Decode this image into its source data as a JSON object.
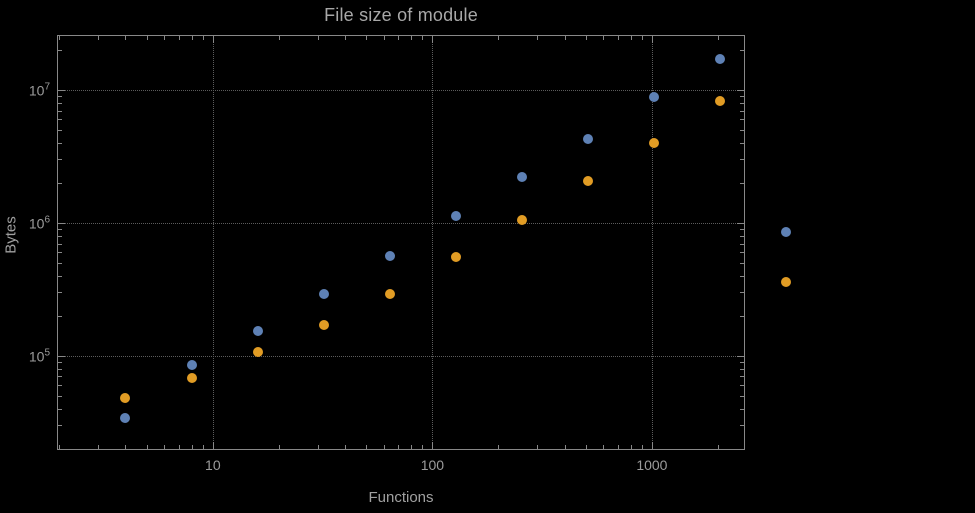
{
  "chart_data": {
    "type": "scatter",
    "title": "File size of module",
    "xlabel": "Functions",
    "ylabel": "Bytes",
    "xscale": "log",
    "yscale": "log",
    "xlim": [
      1.95,
      2655
    ],
    "ylim": [
      19600,
      25900000
    ],
    "grid": "dotted",
    "legend": "none",
    "x_gridlines": [
      10,
      100,
      1000
    ],
    "y_gridlines": [
      100000,
      1000000,
      10000000
    ],
    "x_ticks": [
      {
        "value": 10,
        "label": "10"
      },
      {
        "value": 100,
        "label": "100"
      },
      {
        "value": 1000,
        "label": "1000"
      }
    ],
    "y_ticks": [
      {
        "value": 100000,
        "mantissa": "10",
        "exponent": "5"
      },
      {
        "value": 1000000,
        "mantissa": "10",
        "exponent": "6"
      },
      {
        "value": 10000000,
        "mantissa": "10",
        "exponent": "7"
      }
    ],
    "series": [
      {
        "name": "blue",
        "color": "#5e81b5",
        "points": [
          [
            4,
            34000
          ],
          [
            8,
            86000
          ],
          [
            16,
            155000
          ],
          [
            32,
            290000
          ],
          [
            64,
            560000
          ],
          [
            128,
            1120000
          ],
          [
            256,
            2200000
          ],
          [
            512,
            4300000
          ],
          [
            1024,
            8800000
          ],
          [
            2048,
            17000000
          ],
          [
            4096,
            850000
          ]
        ]
      },
      {
        "name": "orange",
        "color": "#e19c24",
        "points": [
          [
            4,
            48000
          ],
          [
            8,
            68000
          ],
          [
            16,
            107000
          ],
          [
            32,
            170000
          ],
          [
            64,
            290000
          ],
          [
            128,
            550000
          ],
          [
            256,
            1050000
          ],
          [
            512,
            2050000
          ],
          [
            1024,
            4000000
          ],
          [
            2048,
            8200000
          ],
          [
            4096,
            360000
          ]
        ]
      }
    ],
    "colors": {
      "background": "#000000",
      "frame": "#888888",
      "grid": "#5c5c5c",
      "text": "#a0a0a0",
      "series_blue": "#5e81b5",
      "series_orange": "#e19c24"
    }
  }
}
